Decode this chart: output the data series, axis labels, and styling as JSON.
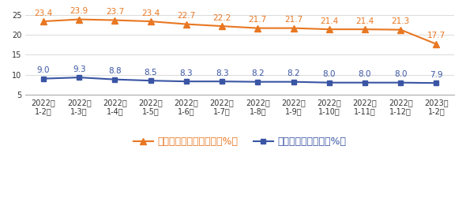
{
  "categories": [
    "2022年\n1-2月",
    "2022年\n1-3月",
    "2022年\n1-4月",
    "2022年\n1-5月",
    "2022年\n1-6月",
    "2022年\n1-7月",
    "2022年\n1-8月",
    "2022年\n1-9月",
    "2022年\n1-10月",
    "2022年\n1-11月",
    "2022年\n1-12月",
    "2023年\n1-2月"
  ],
  "series1_values": [
    23.4,
    23.9,
    23.7,
    23.4,
    22.7,
    22.2,
    21.7,
    21.7,
    21.4,
    21.4,
    21.3,
    17.7
  ],
  "series2_values": [
    9.0,
    9.3,
    8.8,
    8.5,
    8.3,
    8.3,
    8.2,
    8.2,
    8.0,
    8.0,
    8.0,
    7.9
  ],
  "series1_label": "电信业务总量累计增速（%）",
  "series2_label": "电信业务收入增速（%）",
  "series1_color": "#E87722",
  "series2_color": "#3A55A4",
  "ylim": [
    5,
    25
  ],
  "yticks": [
    5,
    10,
    15,
    20,
    25
  ],
  "background_color": "#FFFFFF",
  "grid_color": "#CCCCCC",
  "marker1": "^",
  "marker2": "s",
  "linewidth": 1.5,
  "markersize1": 6,
  "markersize2": 5,
  "label_fontsize": 7.5,
  "tick_fontsize": 7,
  "legend_fontsize": 9
}
